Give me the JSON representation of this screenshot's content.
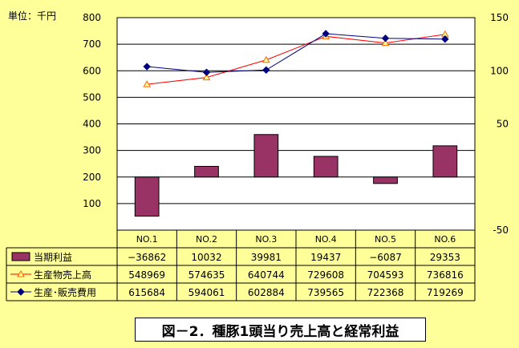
{
  "chart_data": {
    "type": "bar+line",
    "unit_label": "単位：千円",
    "caption": "図－2．種豚1頭当り売上高と経常利益",
    "categories": [
      "NO.1",
      "NO.2",
      "NO.3",
      "NO.4",
      "NO.5",
      "NO.6"
    ],
    "left_axis": {
      "ylim": [
        0,
        800
      ],
      "ticks": [
        "100",
        "200",
        "300",
        "400",
        "500",
        "600",
        "700",
        "800"
      ]
    },
    "right_axis": {
      "ylim": [
        -50,
        150
      ],
      "ticks": [
        "-50",
        "50",
        "100",
        "150"
      ]
    },
    "grid": true,
    "series": [
      {
        "name": "当期利益",
        "type": "bar",
        "axis": "right",
        "color": "#993366",
        "values": [
          -36862,
          10032,
          39981,
          19437,
          -6087,
          29353
        ],
        "labels": [
          "−36862",
          "10032",
          "39981",
          "19437",
          "−6087",
          "29353"
        ]
      },
      {
        "name": "生産物売上高",
        "type": "line",
        "axis": "left",
        "color": "#FF0000",
        "marker": "triangle",
        "values": [
          548969,
          574635,
          640744,
          729608,
          704593,
          736816
        ],
        "labels": [
          "548969",
          "574635",
          "640744",
          "729608",
          "704593",
          "736816"
        ]
      },
      {
        "name": "生産･販売費用",
        "type": "line",
        "axis": "left",
        "color": "#000080",
        "marker": "diamond",
        "values": [
          615684,
          594061,
          602884,
          739565,
          722368,
          719269
        ],
        "labels": [
          "615684",
          "594061",
          "602884",
          "739565",
          "722368",
          "719269"
        ]
      }
    ]
  }
}
